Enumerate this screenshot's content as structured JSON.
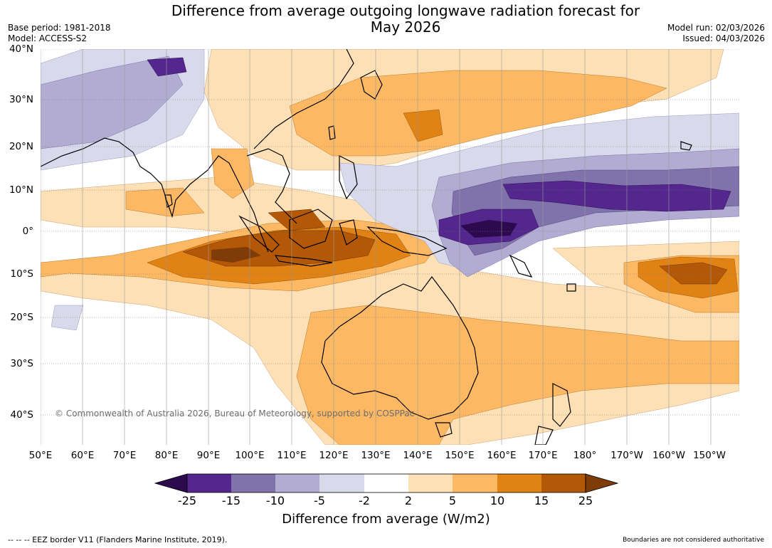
{
  "header": {
    "title_line1": "Difference from average outgoing longwave radiation forecast for",
    "title_line2": "May 2026",
    "base_period": "Base period: 1981-2018",
    "model": "Model: ACCESS-S2",
    "model_run": "Model run: 02/03/2026",
    "issued": "Issued: 04/03/2026"
  },
  "map": {
    "latitude_labels": [
      "40°N",
      "30°N",
      "20°N",
      "10°N",
      "0°",
      "10°S",
      "20°S",
      "30°S",
      "40°S"
    ],
    "longitude_labels": [
      "50°E",
      "60°E",
      "70°E",
      "80°E",
      "90°E",
      "100°E",
      "110°E",
      "120°E",
      "130°E",
      "140°E",
      "150°E",
      "160°E",
      "170°E",
      "180°",
      "170°W",
      "160°W",
      "150°W"
    ],
    "copyright": "© Commonwealth of Australia 2026, Bureau of Meteorology, supported by COSPPac"
  },
  "legend": {
    "ticks": [
      "-25",
      "-15",
      "-10",
      "-5",
      "-2",
      "2",
      "5",
      "10",
      "15",
      "25"
    ],
    "title": "Difference from average (W/m2)",
    "colors": {
      "below_-25": "#2d0a4e",
      "-25_-15": "#54278f",
      "-15_-10": "#8073ac",
      "-10_-5": "#b2abd2",
      "-5_-2": "#d8daeb",
      "-2_2": "#ffffff",
      "2_5": "#fee0b6",
      "5_10": "#fdb863",
      "10_15": "#e08214",
      "15_25": "#b35806",
      "above_25": "#7f3b08"
    }
  },
  "footer": {
    "eez_note": "--  --  -- EEZ border V11 (Flanders Marine Institute, 2019).",
    "disclaimer": "Boundaries are not considered authoritative"
  }
}
